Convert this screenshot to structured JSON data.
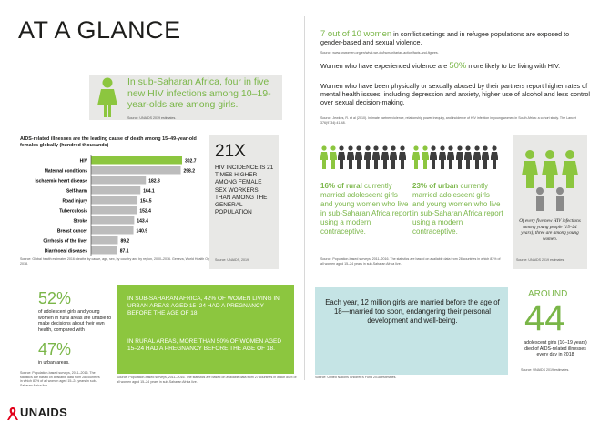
{
  "header": {
    "title": "AT A GLANCE"
  },
  "hiv_stat": {
    "text": "In sub-Saharan Africa, four in five new HIV infections among 10–19-year-olds are among girls.",
    "source": "Source: UNAIDS 2019 estimates."
  },
  "chart_data": {
    "type": "bar",
    "title": "AIDS-related illnesses are the leading cause of death among 15–49-year-old females globally (hundred thousands)",
    "categories": [
      "HIV",
      "Maternal conditions",
      "Ischaemic heart disease",
      "Self-harm",
      "Road injury",
      "Tuberculosis",
      "Stroke",
      "Breast cancer",
      "Cirrhosis of the liver",
      "Diarrhoeal diseases"
    ],
    "values": [
      302.7,
      298.2,
      182.3,
      164.1,
      154.5,
      152.4,
      143.4,
      140.9,
      89.2,
      87.1
    ],
    "value_labels": [
      "302.7",
      "298.2",
      "182.3",
      "164.1",
      "154.5",
      "152.4",
      "143.4",
      "140.9",
      "89.2",
      "87.1"
    ],
    "highlight_index": 0,
    "colors": {
      "highlight": "#8cc63f",
      "bar": "#bcbcbc"
    },
    "source": "Source: Global health estimates 2016: deaths by cause, age, sex, by country and by region, 2000–2016. Geneva, World Health Organization; 2018."
  },
  "x21": {
    "number": "21X",
    "text": "HIV incidence is 21 times higher among female sex workers than among the general population",
    "source": "Source: UNAIDS, 2019."
  },
  "right_stats": {
    "s1_big": "7 out of 10 women",
    "s1_rest": " in conflict settings and in refugee populations are exposed to gender-based and sexual violence.",
    "s1_source": "Source: www.unwomen.org/en/what-we-do/humanitarian-action/facts-and-figures.",
    "s2_pre": "Women who have experienced violence are ",
    "s2_big": "50%",
    "s2_post": " more likely to be living with HIV.",
    "s3": "Women who have been physically or sexually abused by their partners report higher rates of mental health issues, including depression and anxiety, higher use of alcohol and less control over sexual decision-making.",
    "s3_source": "Source: Jewkes, R. et al (2010). Intimate partner violence, relationship power inequity, and incidence of HIV infection in young women in South Africa: a cohort study. The Lancet 376(9734):41-48."
  },
  "contraceptive": {
    "rural_big": "16% of rural",
    "rural_rest": " currently married adolescent girls and young women who live in sub-Saharan Africa report using a modern contraceptive.",
    "urban_big": "23% of urban",
    "urban_rest": " currently married adolescent girls and young women who live in sub-Saharan Africa report using a modern contraceptive.",
    "source": "Source: Population-based surveys, 2011–2016. The statistics are based on available data from 28 countries in which 83% of all women aged 15–24 years in sub-Saharan Africa live."
  },
  "hiv_five": {
    "text": "Of every five new HIV infections among young people (15–24 years), three are among young women.",
    "source": "Source: UNAIDS 2019 estimates."
  },
  "decisions": {
    "p52": "52%",
    "p52_text": "of adolescent girls and young women in rural areas are unable to make decisions about their own health, compared with",
    "p47": "47%",
    "p47_text": "in urban areas.",
    "source": "Source: Population-based surveys, 2011–2016. The statistics are based on available data from 28 countries in which 83% of all women aged 15–24 years in sub-Saharan Africa live."
  },
  "pregnancy": {
    "t1": "In sub-Saharan Africa, 42% of women living in urban areas aged 15–24 had a pregnancy before the age of 18.",
    "t2": "In rural areas, more than 50% of women aged 15–24 had a pregnancy before the age of 18.",
    "source": "Source: Population-based surveys, 2011–2016. The statistics are based on available data from 27 countries in which 80% of all women aged 15–24 years in sub-Saharan Africa live."
  },
  "married": {
    "text": "Each year, 12 million girls are married before the age of 18—married too soon, endangering their personal development and well-being.",
    "source": "Source: United Nations Children's Fund 2018 estimates."
  },
  "around44": {
    "around": "AROUND",
    "number": "44",
    "text": "adolescent girls (10–19 years) died of AIDS-related illnesses every day in 2018",
    "source": "Source: UNAIDS 2019 estimates."
  },
  "logo": {
    "text": "UNAIDS"
  },
  "colors": {
    "accent": "#8cc63f",
    "text_green": "#7ab648",
    "panel_gray": "#e8e8e6",
    "teal": "#c5e4e5"
  }
}
